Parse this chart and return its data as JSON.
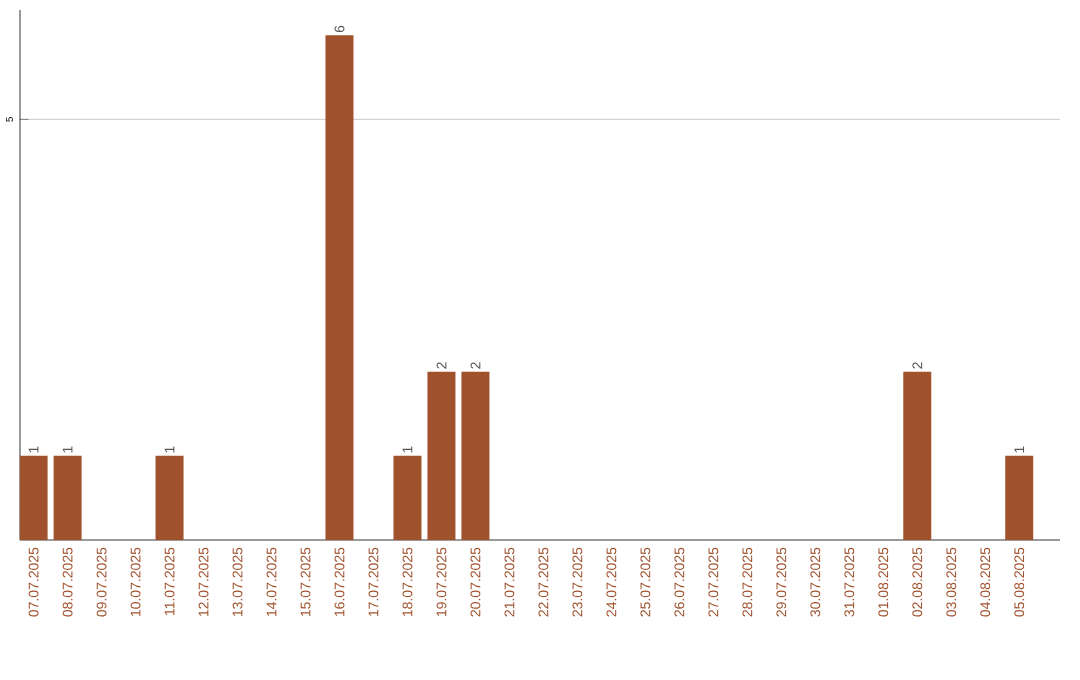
{
  "chart_data": {
    "type": "bar",
    "categories": [
      "07.07.2025",
      "08.07.2025",
      "09.07.2025",
      "10.07.2025",
      "11.07.2025",
      "12.07.2025",
      "13.07.2025",
      "14.07.2025",
      "15.07.2025",
      "16.07.2025",
      "17.07.2025",
      "18.07.2025",
      "19.07.2025",
      "20.07.2025",
      "21.07.2025",
      "22.07.2025",
      "23.07.2025",
      "24.07.2025",
      "25.07.2025",
      "26.07.2025",
      "27.07.2025",
      "28.07.2025",
      "29.07.2025",
      "30.07.2025",
      "31.07.2025",
      "01.08.2025",
      "02.08.2025",
      "03.08.2025",
      "04.08.2025",
      "05.08.2025"
    ],
    "values": [
      1,
      1,
      0,
      0,
      1,
      0,
      0,
      0,
      0,
      6,
      0,
      1,
      2,
      2,
      0,
      0,
      0,
      0,
      0,
      0,
      0,
      0,
      0,
      0,
      0,
      0,
      2,
      0,
      0,
      1
    ],
    "value_labels": [
      "1",
      "1",
      null,
      null,
      "1",
      null,
      null,
      null,
      null,
      "6",
      null,
      "1",
      "2",
      "2",
      null,
      null,
      null,
      null,
      null,
      null,
      null,
      null,
      null,
      null,
      null,
      null,
      "2",
      null,
      null,
      "1"
    ],
    "color": "#a0522d",
    "ylim": [
      0,
      6.3
    ],
    "yticks": [
      5
    ],
    "grid": "y"
  }
}
